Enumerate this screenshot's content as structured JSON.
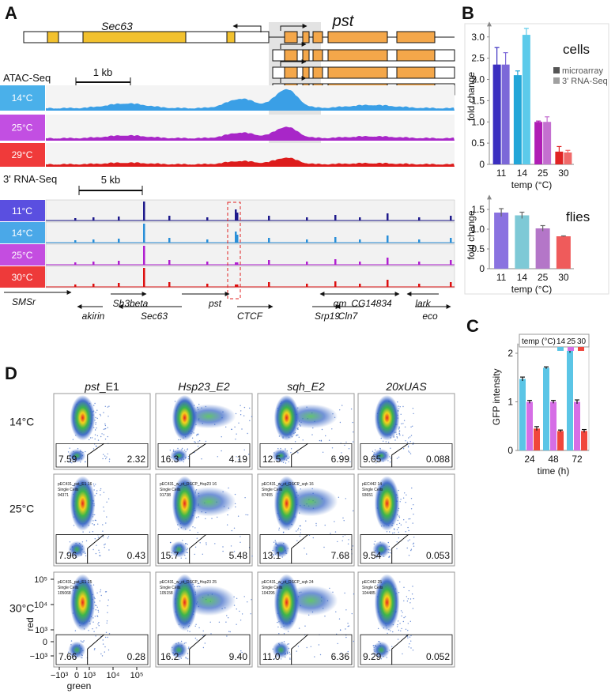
{
  "panel_a": {
    "label": "A",
    "gene_left": "Sec63",
    "gene_right": "pst",
    "atac_label": "ATAC-Seq",
    "atac_scale": "1 kb",
    "atac_tracks": [
      "14°C",
      "25°C",
      "29°C"
    ],
    "rna_label": "3' RNA-Seq",
    "rna_scale": "5 kb",
    "rna_tracks": [
      "11°C",
      "14°C",
      "25°C",
      "30°C"
    ],
    "genes": [
      "SMSr",
      "akirin",
      "Sh3beta",
      "Sec63",
      "pst",
      "CTCF",
      "qm",
      "Srp19",
      "CG14834",
      "Cln7",
      "lark",
      "eco"
    ]
  },
  "panel_b": {
    "label": "B"
  },
  "panel_c": {
    "label": "C"
  },
  "panel_d": {
    "label": "D",
    "columns": [
      {
        "italic": "pst",
        "plain": "_E1"
      },
      {
        "italic": "Hsp23_E2"
      },
      {
        "italic": "sqh_E2"
      },
      {
        "italic": "20xUAS"
      }
    ],
    "rows": [
      "14°C",
      "25°C",
      "30°C"
    ],
    "cells": [
      [
        {
          "left": "7.59",
          "right": "2.32"
        },
        {
          "left": "16.3",
          "right": "4.19"
        },
        {
          "left": "12.5",
          "right": "6.99"
        },
        {
          "left": "9.65",
          "right": "0.088"
        }
      ],
      [
        {
          "left": "7.96",
          "right": "0.43",
          "info": [
            "pEC431_pst_E1 16",
            "Single Cells",
            "94371"
          ]
        },
        {
          "left": "15.7",
          "right": "5.48",
          "info": [
            "pEC431_w_ct_DSCP_Hsp23 16",
            "Single Cells",
            "91738"
          ]
        },
        {
          "left": "13.1",
          "right": "7.68",
          "info": [
            "pEC431_w_ct_DSCP_sqh 16",
            "Single Cells",
            "87455"
          ]
        },
        {
          "left": "9.54",
          "right": "0.053",
          "info": [
            "pEC442 14",
            "Single Cells",
            "93651"
          ]
        }
      ],
      [
        {
          "left": "7.66",
          "right": "0.28",
          "info": [
            "pEC431_pst_E1 25",
            "Single Cells",
            "105068"
          ]
        },
        {
          "left": "16.2",
          "right": "9.40",
          "info": [
            "pEC431_w_ct_DSCP_Hsp23 25",
            "Single Cells",
            "105158"
          ]
        },
        {
          "left": "11.0",
          "right": "6.36",
          "info": [
            "pEC431_w_ct_DSCP_sqh 24",
            "Single Cells",
            "104295"
          ]
        },
        {
          "left": "9.29",
          "right": "0.052",
          "info": [
            "pEC442 25",
            "Single Cells",
            "104485"
          ]
        }
      ]
    ],
    "y_axis_label": "red",
    "x_axis_label": "green",
    "y_ticks": [
      "10⁵",
      "10⁴",
      "10³",
      "0",
      "−10³"
    ],
    "x_ticks": [
      "−10³",
      "0",
      "10³",
      "10⁴",
      "10⁵"
    ]
  },
  "chart_data": [
    {
      "type": "bar",
      "annotation": "cells",
      "y_label": "fold change",
      "x_label": "temp (°C)",
      "categories": [
        "11",
        "14",
        "25",
        "30"
      ],
      "ylim": [
        0,
        3.2
      ],
      "yticks": [
        0,
        0.5,
        {
          "value": 1,
          "label": "1.0"
        },
        1.5,
        {
          "value": 2,
          "label": "2.0"
        },
        2.5,
        {
          "value": 3,
          "label": "3.0"
        }
      ],
      "series": [
        {
          "name": "microarray",
          "color": "#555555",
          "bar_colors": [
            "#3b2fc0",
            "#22a6d8",
            "#b01eb5",
            "#e02424"
          ],
          "values": [
            2.35,
            2.1,
            1.0,
            0.3
          ],
          "errors": [
            0.4,
            0.1,
            0.02,
            0.12
          ]
        },
        {
          "name": "3' RNA-Seq",
          "color": "#a0a0a0",
          "bar_colors": [
            "#7c68d8",
            "#5ccaea",
            "#c470d0",
            "#f06a6a"
          ],
          "values": [
            2.35,
            3.05,
            1.0,
            0.28
          ],
          "errors": [
            0.28,
            0.15,
            0.12,
            0.05
          ]
        }
      ]
    },
    {
      "type": "bar",
      "annotation": "flies",
      "y_label": "fold change",
      "x_label": "temp (°C)",
      "categories": [
        "11",
        "14",
        "25",
        "30"
      ],
      "ylim": [
        0,
        1.7
      ],
      "yticks": [
        0,
        0.5,
        {
          "value": 1,
          "label": "1.0"
        },
        1.5
      ],
      "colors": [
        "#8a72e0",
        "#7ec9d6",
        "#b476c8",
        "#ef5b5b"
      ],
      "values": [
        1.42,
        1.35,
        1.02,
        0.82
      ],
      "errors": [
        0.1,
        0.08,
        0.07,
        0.01
      ]
    },
    {
      "type": "bar",
      "y_label": "GFP intensity",
      "x_label": "time (h)",
      "legend_title": "temp (°C)",
      "categories": [
        "24",
        "48",
        "72"
      ],
      "ylim": [
        0,
        2.2
      ],
      "yticks": [
        0,
        1,
        2
      ],
      "series": [
        {
          "name": "14",
          "color": "#5bc5e6",
          "values": [
            1.47,
            1.7,
            2.05
          ],
          "errors": [
            0.04,
            0.02,
            0.04
          ]
        },
        {
          "name": "25",
          "color": "#d66ee6",
          "values": [
            1.0,
            1.0,
            1.0
          ],
          "errors": [
            0.03,
            0.03,
            0.04
          ]
        },
        {
          "name": "30",
          "color": "#f0463c",
          "values": [
            0.45,
            0.4,
            0.4
          ],
          "errors": [
            0.04,
            0.02,
            0.03
          ]
        }
      ]
    }
  ]
}
